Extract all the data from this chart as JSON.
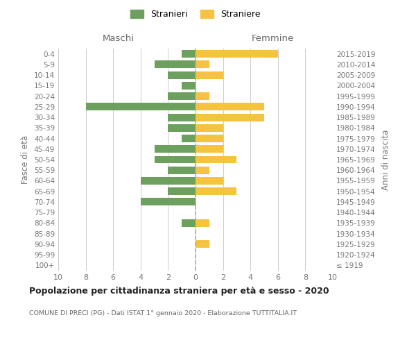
{
  "age_groups": [
    "100+",
    "95-99",
    "90-94",
    "85-89",
    "80-84",
    "75-79",
    "70-74",
    "65-69",
    "60-64",
    "55-59",
    "50-54",
    "45-49",
    "40-44",
    "35-39",
    "30-34",
    "25-29",
    "20-24",
    "15-19",
    "10-14",
    "5-9",
    "0-4"
  ],
  "birth_years": [
    "≤ 1919",
    "1920-1924",
    "1925-1929",
    "1930-1934",
    "1935-1939",
    "1940-1944",
    "1945-1949",
    "1950-1954",
    "1955-1959",
    "1960-1964",
    "1965-1969",
    "1970-1974",
    "1975-1979",
    "1980-1984",
    "1985-1989",
    "1990-1994",
    "1995-1999",
    "2000-2004",
    "2005-2009",
    "2010-2014",
    "2015-2019"
  ],
  "males": [
    0,
    0,
    0,
    0,
    1,
    0,
    4,
    2,
    4,
    2,
    3,
    3,
    1,
    2,
    2,
    8,
    2,
    1,
    2,
    3,
    1
  ],
  "females": [
    0,
    0,
    1,
    0,
    1,
    0,
    0,
    3,
    2,
    1,
    3,
    2,
    2,
    2,
    5,
    5,
    1,
    0,
    2,
    1,
    6
  ],
  "male_color": "#6d9f5e",
  "female_color": "#f5c242",
  "center_line_color": "#b8b845",
  "grid_color": "#cccccc",
  "title": "Popolazione per cittadinanza straniera per età e sesso - 2020",
  "subtitle": "COMUNE DI PRECI (PG) - Dati ISTAT 1° gennaio 2020 - Elaborazione TUTTITALIA.IT",
  "ylabel_left": "Fasce di età",
  "ylabel_right": "Anni di nascita",
  "xlabel_left": "Maschi",
  "xlabel_right": "Femmine",
  "legend_male": "Stranieri",
  "legend_female": "Straniere",
  "xlim": 10,
  "background_color": "#ffffff"
}
